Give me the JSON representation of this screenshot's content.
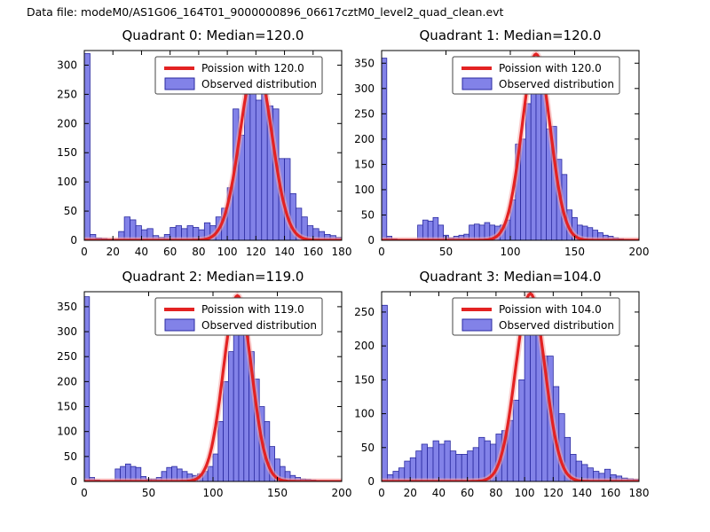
{
  "suptitle": "Data file: modeM0/AS1G06_164T01_9000000896_06617cztM0_level2_quad_clean.evt",
  "colors": {
    "bar_fill": "#8282e8",
    "bar_edge": "#2a2aa0",
    "curve": "#e32222",
    "curve_halo": "#f5a8a8",
    "frame": "#000000",
    "legend_border": "#444444"
  },
  "chart_data": [
    {
      "type": "bar",
      "title": "Quadrant 0: Median=120.0",
      "legend": [
        "Poission with 120.0",
        "Observed distribution"
      ],
      "xlim": [
        0,
        180
      ],
      "ylim": [
        0,
        325
      ],
      "xticks": [
        0,
        20,
        40,
        60,
        80,
        100,
        120,
        140,
        160,
        180
      ],
      "yticks": [
        0,
        50,
        100,
        150,
        200,
        250,
        300
      ],
      "bin_start": 0,
      "bin_width": 4,
      "counts": [
        320,
        10,
        4,
        3,
        2,
        2,
        15,
        40,
        35,
        25,
        18,
        20,
        8,
        5,
        10,
        22,
        25,
        20,
        25,
        22,
        18,
        30,
        25,
        40,
        55,
        90,
        225,
        180,
        250,
        280,
        240,
        295,
        230,
        225,
        140,
        140,
        80,
        55,
        40,
        25,
        20,
        15,
        10,
        8,
        5
      ],
      "curve": {
        "mean": 120,
        "sigma": 11,
        "peak": 305
      }
    },
    {
      "type": "bar",
      "title": "Quadrant 1: Median=120.0",
      "legend": [
        "Poission with 120.0",
        "Observed distribution"
      ],
      "xlim": [
        0,
        200
      ],
      "ylim": [
        0,
        375
      ],
      "xticks": [
        0,
        50,
        100,
        150,
        200
      ],
      "yticks": [
        0,
        50,
        100,
        150,
        200,
        250,
        300,
        350
      ],
      "bin_start": 0,
      "bin_width": 4,
      "counts": [
        360,
        8,
        3,
        2,
        2,
        2,
        2,
        30,
        40,
        38,
        45,
        30,
        10,
        5,
        8,
        10,
        12,
        30,
        32,
        30,
        35,
        30,
        28,
        30,
        40,
        80,
        190,
        200,
        270,
        300,
        355,
        340,
        220,
        225,
        160,
        130,
        60,
        45,
        30,
        28,
        25,
        20,
        15,
        10,
        8,
        5,
        3,
        2,
        1,
        1
      ],
      "curve": {
        "mean": 120,
        "sigma": 11,
        "peak": 368
      }
    },
    {
      "type": "bar",
      "title": "Quadrant 2: Median=119.0",
      "legend": [
        "Poission with 119.0",
        "Observed distribution"
      ],
      "xlim": [
        0,
        200
      ],
      "ylim": [
        0,
        380
      ],
      "xticks": [
        0,
        50,
        100,
        150,
        200
      ],
      "yticks": [
        0,
        50,
        100,
        150,
        200,
        250,
        300,
        350
      ],
      "bin_start": 0,
      "bin_width": 4,
      "counts": [
        370,
        8,
        3,
        2,
        2,
        2,
        25,
        30,
        35,
        30,
        28,
        10,
        5,
        5,
        8,
        20,
        28,
        30,
        25,
        20,
        15,
        12,
        15,
        20,
        30,
        55,
        120,
        200,
        260,
        300,
        330,
        310,
        260,
        205,
        150,
        120,
        70,
        45,
        30,
        20,
        12,
        8,
        5,
        4,
        3,
        2,
        2,
        1,
        0,
        0
      ],
      "curve": {
        "mean": 119,
        "sigma": 10.9,
        "peak": 372
      }
    },
    {
      "type": "bar",
      "title": "Quadrant 3: Median=104.0",
      "legend": [
        "Poission with 104.0",
        "Observed distribution"
      ],
      "xlim": [
        0,
        180
      ],
      "ylim": [
        0,
        280
      ],
      "xticks": [
        0,
        20,
        40,
        60,
        80,
        100,
        120,
        140,
        160,
        180
      ],
      "yticks": [
        0,
        50,
        100,
        150,
        200,
        250
      ],
      "bin_start": 0,
      "bin_width": 4,
      "counts": [
        260,
        10,
        15,
        20,
        30,
        35,
        45,
        55,
        50,
        60,
        55,
        60,
        45,
        40,
        40,
        45,
        50,
        65,
        60,
        55,
        70,
        75,
        90,
        120,
        150,
        245,
        255,
        230,
        185,
        185,
        140,
        100,
        65,
        40,
        30,
        25,
        20,
        15,
        12,
        18,
        10,
        8,
        5,
        4,
        3
      ],
      "curve": {
        "mean": 104,
        "sigma": 10.2,
        "peak": 277
      }
    }
  ]
}
